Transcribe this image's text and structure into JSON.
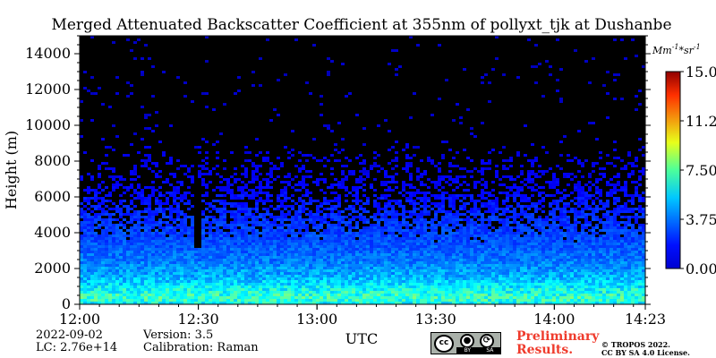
{
  "chart_data": {
    "type": "heatmap",
    "title": "Merged Attenuated Backscatter Coefficient at 355nm of pollyxt_tjk at Dushanbe",
    "xlabel": "UTC",
    "ylabel": "Height (m)",
    "x_ticks": [
      "12:00",
      "12:30",
      "13:00",
      "13:30",
      "14:00",
      "14:23"
    ],
    "x_range_minutes": [
      0,
      143
    ],
    "ylim": [
      0,
      15000
    ],
    "y_ticks": [
      0,
      2000,
      4000,
      6000,
      8000,
      10000,
      12000,
      14000
    ],
    "colorbar": {
      "unit": "Mm$^{-1}*sr^{-1}$",
      "range": [
        0.0,
        15.0
      ],
      "ticks": [
        "0.00",
        "3.75",
        "7.50",
        "11.25",
        "15.00"
      ],
      "colormap": "jet"
    },
    "profile": [
      {
        "height": 0,
        "value": 5.5
      },
      {
        "height": 300,
        "value": 6.5
      },
      {
        "height": 800,
        "value": 5.8
      },
      {
        "height": 1500,
        "value": 4.5
      },
      {
        "height": 2500,
        "value": 3.6
      },
      {
        "height": 3500,
        "value": 3.0
      },
      {
        "height": 4500,
        "value": 2.6
      },
      {
        "height": 5500,
        "value": 2.2
      },
      {
        "height": 6500,
        "value": 1.8
      },
      {
        "height": 8000,
        "value": 1.5
      },
      {
        "height": 10000,
        "value": 1.2
      },
      {
        "height": 15000,
        "value": 0.9
      }
    ],
    "data_gap": {
      "time": "12:30",
      "height_range": [
        3200,
        7000
      ]
    }
  },
  "footer": {
    "date": "2022-09-02",
    "lc": "LC: 2.76e+14",
    "version": "Version: 3.5",
    "calibration": "Calibration: Raman",
    "preliminary_line1": "Preliminary",
    "preliminary_line2": "Results.",
    "copyright_line1": "© TROPOS 2022.",
    "copyright_line2": "CC BY SA 4.0 License.",
    "license_badge": {
      "cc": "cc",
      "by": "BY",
      "sa": "SA"
    }
  }
}
